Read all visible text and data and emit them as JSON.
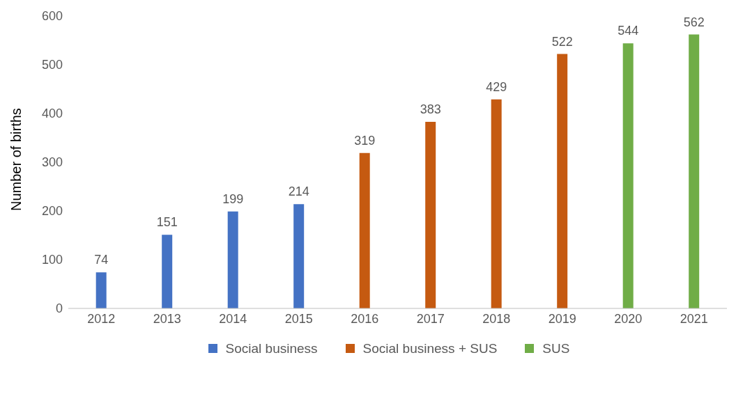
{
  "chart_data": {
    "type": "bar",
    "ylabel": "Number of births",
    "categories": [
      "2012",
      "2013",
      "2014",
      "2015",
      "2016",
      "2017",
      "2018",
      "2019",
      "2020",
      "2021"
    ],
    "series": [
      {
        "name": "Social business",
        "color": "#4472c4",
        "values": [
          74,
          151,
          199,
          214,
          null,
          null,
          null,
          null,
          null,
          null
        ]
      },
      {
        "name": "Social business + SUS",
        "color": "#c55a11",
        "values": [
          null,
          null,
          null,
          null,
          319,
          383,
          429,
          522,
          null,
          null
        ]
      },
      {
        "name": "SUS",
        "color": "#70ad47",
        "values": [
          null,
          null,
          null,
          null,
          null,
          null,
          null,
          null,
          544,
          562
        ]
      }
    ],
    "stacked": true,
    "ylim": [
      0,
      600
    ],
    "yticks": [
      0,
      100,
      200,
      300,
      400,
      500,
      600
    ],
    "grid": false,
    "legend": "bottom",
    "data_labels": true
  }
}
